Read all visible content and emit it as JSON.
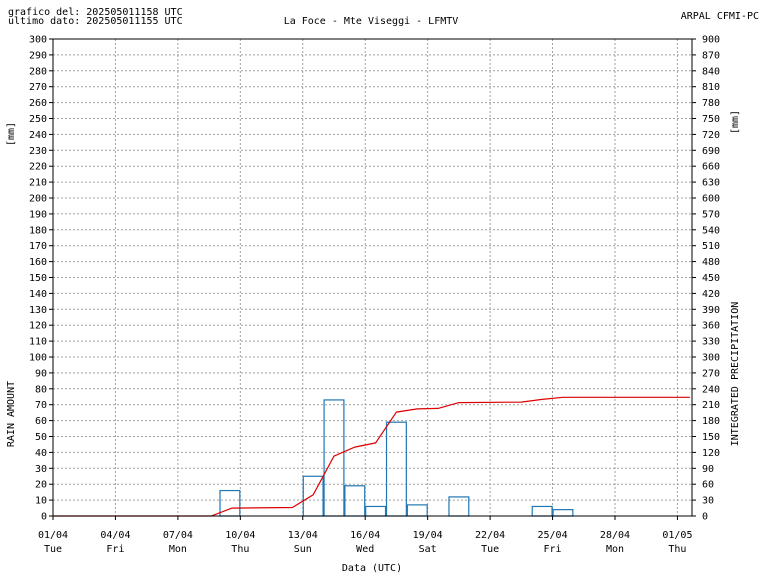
{
  "header": {
    "graph_date": "grafico del: 202505011158 UTC",
    "last_data": "ultimo dato: 202505011155 UTC",
    "station": "La Foce - Mte Viseggi - LFMTV",
    "agency": "ARPAL CFMI-PC"
  },
  "colors": {
    "bars": "#1f77b4",
    "cumulative": "#dd0000",
    "grid": "#a0a0a0"
  },
  "chart_data": {
    "type": "bar",
    "xlabel": "Data (UTC)",
    "ylabel_left": "RAIN AMOUNT",
    "ylabel_right": "INTEGRATED PRECIPITATION",
    "unit_left": "[mm]",
    "unit_right": "[mm]",
    "x_range_days": [
      0,
      30.7
    ],
    "ylim_left": [
      0,
      300
    ],
    "ylim_right": [
      0,
      900
    ],
    "yticks_left_step": 10,
    "yticks_right_step": 30,
    "grid": true,
    "x_ticks": [
      {
        "day": 0,
        "date": "01/04",
        "weekday": "Tue"
      },
      {
        "day": 3,
        "date": "04/04",
        "weekday": "Fri"
      },
      {
        "day": 6,
        "date": "07/04",
        "weekday": "Mon"
      },
      {
        "day": 9,
        "date": "10/04",
        "weekday": "Thu"
      },
      {
        "day": 12,
        "date": "13/04",
        "weekday": "Sun"
      },
      {
        "day": 15,
        "date": "16/04",
        "weekday": "Wed"
      },
      {
        "day": 18,
        "date": "19/04",
        "weekday": "Sat"
      },
      {
        "day": 21,
        "date": "22/04",
        "weekday": "Tue"
      },
      {
        "day": 24,
        "date": "25/04",
        "weekday": "Fri"
      },
      {
        "day": 27,
        "date": "28/04",
        "weekday": "Mon"
      },
      {
        "day": 30,
        "date": "01/05",
        "weekday": "Thu"
      }
    ],
    "series": [
      {
        "name": "RAIN AMOUNT",
        "kind": "bar",
        "bars": [
          {
            "day": 8,
            "value": 16
          },
          {
            "day": 12,
            "value": 25
          },
          {
            "day": 13,
            "value": 73
          },
          {
            "day": 14,
            "value": 19
          },
          {
            "day": 15,
            "value": 6
          },
          {
            "day": 16,
            "value": 59
          },
          {
            "day": 17,
            "value": 7
          },
          {
            "day": 19,
            "value": 12
          },
          {
            "day": 23,
            "value": 6
          },
          {
            "day": 24,
            "value": 4
          }
        ]
      },
      {
        "name": "INTEGRATED PRECIPITATION",
        "kind": "line",
        "points": [
          [
            0,
            0
          ],
          [
            7.6,
            0
          ],
          [
            8.6,
            15
          ],
          [
            11.5,
            16
          ],
          [
            12.5,
            40
          ],
          [
            13.5,
            113
          ],
          [
            14.5,
            130
          ],
          [
            15.5,
            138
          ],
          [
            16.5,
            196
          ],
          [
            17.5,
            202
          ],
          [
            18.5,
            203
          ],
          [
            19.5,
            214
          ],
          [
            22.5,
            215
          ],
          [
            23.5,
            220
          ],
          [
            24.5,
            224
          ],
          [
            30.6,
            224
          ]
        ]
      }
    ]
  }
}
